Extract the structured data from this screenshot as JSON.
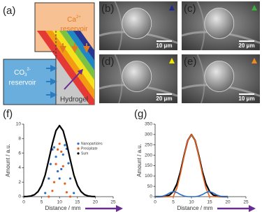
{
  "diagram": {
    "label": "(a)",
    "ca_ion": "Ca",
    "ca_charge": "2+",
    "ca_reservoir": "reservoir",
    "co3_ion": "CO",
    "co3_sub": "3",
    "co3_charge": "2-",
    "co3_reservoir": "reservoir",
    "hydrogel": "Hydrogel"
  },
  "images": [
    {
      "label": "(b)",
      "scale": "10 μm",
      "marker_color": "#1f2a8a"
    },
    {
      "label": "(c)",
      "scale": "20 μm",
      "marker_color": "#3cae3c"
    },
    {
      "label": "(d)",
      "scale": "20 μm",
      "marker_color": "#f2e600"
    },
    {
      "label": "(e)",
      "scale": "10 μm",
      "marker_color": "#f08a1c"
    }
  ],
  "chart_data": [
    {
      "type": "line",
      "label": "(f)",
      "xlabel": "Distance / mm",
      "ylabel": "Amount / a.u.",
      "xlim": [
        0,
        25
      ],
      "xticks": [
        0,
        5,
        10,
        15,
        20,
        25
      ],
      "ylim": [
        0,
        10
      ],
      "yticks": [
        0,
        2,
        4,
        6,
        8,
        10
      ],
      "legend": "upper right",
      "series": [
        {
          "name": "Nanoparticles",
          "color": "#2b6cc4",
          "mode": "markers",
          "x": [
            6,
            7,
            7.5,
            8,
            8.5,
            9,
            9.5,
            10,
            10.5,
            11,
            11.5,
            12,
            12.5,
            13,
            14
          ],
          "values": [
            0.5,
            2.5,
            4.5,
            6.5,
            6.8,
            5.5,
            3.5,
            2.5,
            3.8,
            5.8,
            7.1,
            6.6,
            4.6,
            2.5,
            0.5
          ]
        },
        {
          "name": "Precipitate",
          "color": "#e8601c",
          "mode": "markers",
          "x": [
            7,
            8,
            8.5,
            9,
            9.5,
            10,
            10.5,
            11,
            11.5,
            12,
            13
          ],
          "values": [
            0,
            0.8,
            2,
            4.5,
            6.5,
            7.3,
            6.2,
            4.2,
            1.8,
            0.6,
            0
          ]
        },
        {
          "name": "Sum",
          "color": "#000000",
          "mode": "line",
          "x": [
            0,
            1,
            2,
            3,
            4,
            5,
            6,
            7,
            8,
            9,
            10,
            11,
            12,
            13,
            14,
            15,
            16,
            17,
            18,
            19,
            20
          ],
          "values": [
            0.01,
            0.03,
            0.09,
            0.27,
            0.7,
            1.56,
            3.0,
            5.1,
            7.3,
            9.1,
            9.8,
            9.1,
            7.3,
            5.1,
            3.0,
            1.56,
            0.7,
            0.27,
            0.09,
            0.03,
            0.01
          ]
        }
      ]
    },
    {
      "type": "line",
      "label": "(g)",
      "xlabel": "Distance / mm",
      "ylabel": "Amount / a.u.",
      "xlim": [
        0,
        25
      ],
      "xticks": [
        0,
        5,
        10,
        15,
        20,
        25
      ],
      "ylim": [
        0,
        350
      ],
      "yticks": [
        0,
        50,
        100,
        150,
        200,
        250,
        300,
        350
      ],
      "series": [
        {
          "color": "#000000",
          "mode": "line",
          "x": [
            0,
            1,
            2,
            3,
            4,
            5,
            6,
            7,
            8,
            9,
            10,
            11,
            12,
            13,
            14,
            15,
            16,
            17,
            18,
            19,
            20
          ],
          "values": [
            0,
            0,
            0.5,
            2,
            8,
            25,
            61,
            122,
            201,
            272,
            300,
            272,
            201,
            122,
            61,
            25,
            8,
            2,
            0.5,
            0,
            0
          ]
        },
        {
          "color": "#e8601c",
          "mode": "line",
          "x": [
            0,
            1,
            2,
            3,
            4,
            5,
            6,
            7,
            8,
            9,
            10,
            11,
            12,
            13,
            14,
            15,
            16,
            17,
            18,
            19,
            20
          ],
          "values": [
            0,
            0,
            0,
            0,
            0,
            0,
            41,
            112,
            198,
            272,
            300,
            272,
            198,
            112,
            41,
            0,
            0,
            0,
            0,
            0,
            0
          ]
        },
        {
          "color": "#2b6cc4",
          "mode": "line",
          "x": [
            0,
            1,
            2,
            3,
            4,
            5,
            6,
            7,
            8,
            9,
            10,
            11,
            12,
            13,
            14,
            15,
            16,
            17,
            18,
            19,
            20
          ],
          "values": [
            0,
            0,
            2,
            8,
            18,
            25,
            20,
            10,
            3,
            0,
            0,
            0,
            3,
            10,
            20,
            25,
            18,
            8,
            2,
            0,
            0
          ]
        }
      ]
    }
  ]
}
